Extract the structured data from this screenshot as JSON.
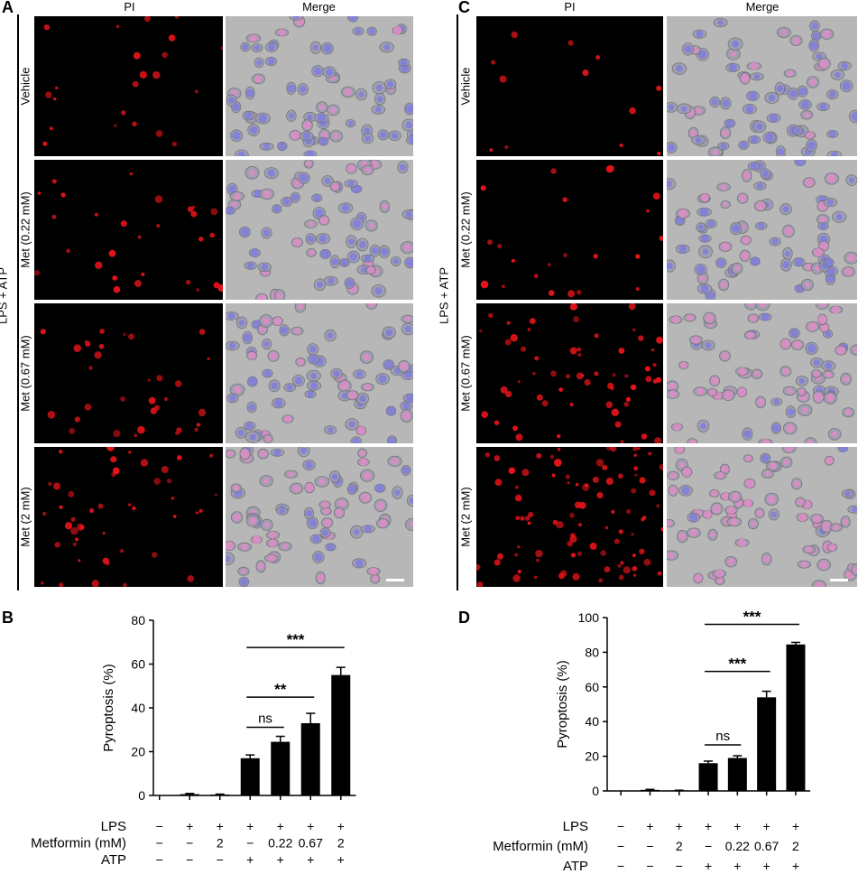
{
  "figure": {
    "panelA": {
      "letter": "A",
      "column_headers": [
        "PI",
        "Merge"
      ],
      "side_label": "LPS + ATP",
      "rows": [
        "Vehicle",
        "Met (0.22 mM)",
        "Met (0.67 mM)",
        "Met (2 mM)"
      ],
      "pi_density": [
        22,
        28,
        32,
        45
      ],
      "merge_pink": [
        0.25,
        0.35,
        0.45,
        0.55
      ]
    },
    "panelC": {
      "letter": "C",
      "column_headers": [
        "PI",
        "Merge"
      ],
      "side_label": "LPS + ATP",
      "rows": [
        "Vehicle",
        "Met (0.22 mM)",
        "Met (0.67 mM)",
        "Met (2 mM)"
      ],
      "pi_density": [
        12,
        22,
        60,
        90
      ],
      "merge_pink": [
        0.3,
        0.4,
        0.7,
        0.85
      ]
    },
    "colors": {
      "pi_red": "#e8141a",
      "merge_gray": "#b7b7b7",
      "nucleus_blue": "#7a78e0",
      "pink": "#e889c8",
      "bar_fill": "#000000"
    }
  },
  "chart_data": [
    {
      "type": "bar",
      "panel": "B",
      "ylabel": "Pyroptosis (%)",
      "ylim": [
        0,
        80
      ],
      "yticks": [
        0,
        20,
        40,
        60,
        80
      ],
      "values": [
        0,
        0.6,
        0.4,
        17,
        24.5,
        33,
        55
      ],
      "errors": [
        0,
        0.3,
        0.2,
        1.5,
        2.5,
        4.5,
        3.5
      ],
      "rows": [
        {
          "label": "LPS",
          "cells": [
            "−",
            "+",
            "+",
            "+",
            "+",
            "+",
            "+"
          ]
        },
        {
          "label": "Metformin (mM)",
          "cells": [
            "−",
            "−",
            "2",
            "−",
            "0.22",
            "0.67",
            "2"
          ]
        },
        {
          "label": "ATP",
          "cells": [
            "−",
            "−",
            "−",
            "+",
            "+",
            "+",
            "+"
          ]
        }
      ],
      "significance": [
        {
          "from": 3,
          "to": 4,
          "text": "ns"
        },
        {
          "from": 3,
          "to": 5,
          "text": "**"
        },
        {
          "from": 3,
          "to": 6,
          "text": "***"
        }
      ]
    },
    {
      "type": "bar",
      "panel": "D",
      "ylabel": "Pyroptosis (%)",
      "ylim": [
        0,
        100
      ],
      "yticks": [
        0,
        20,
        40,
        60,
        80,
        100
      ],
      "values": [
        0,
        0.6,
        0.3,
        16,
        19,
        54,
        84.5
      ],
      "errors": [
        0,
        0.3,
        0.1,
        1.2,
        1.3,
        3.5,
        1.2
      ],
      "rows": [
        {
          "label": "LPS",
          "cells": [
            "−",
            "+",
            "+",
            "+",
            "+",
            "+",
            "+"
          ]
        },
        {
          "label": "Metformin (mM)",
          "cells": [
            "−",
            "−",
            "2",
            "−",
            "0.22",
            "0.67",
            "2"
          ]
        },
        {
          "label": "ATP",
          "cells": [
            "−",
            "−",
            "−",
            "+",
            "+",
            "+",
            "+"
          ]
        }
      ],
      "significance": [
        {
          "from": 3,
          "to": 4,
          "text": "ns"
        },
        {
          "from": 3,
          "to": 5,
          "text": "***"
        },
        {
          "from": 3,
          "to": 6,
          "text": "***"
        }
      ]
    }
  ]
}
